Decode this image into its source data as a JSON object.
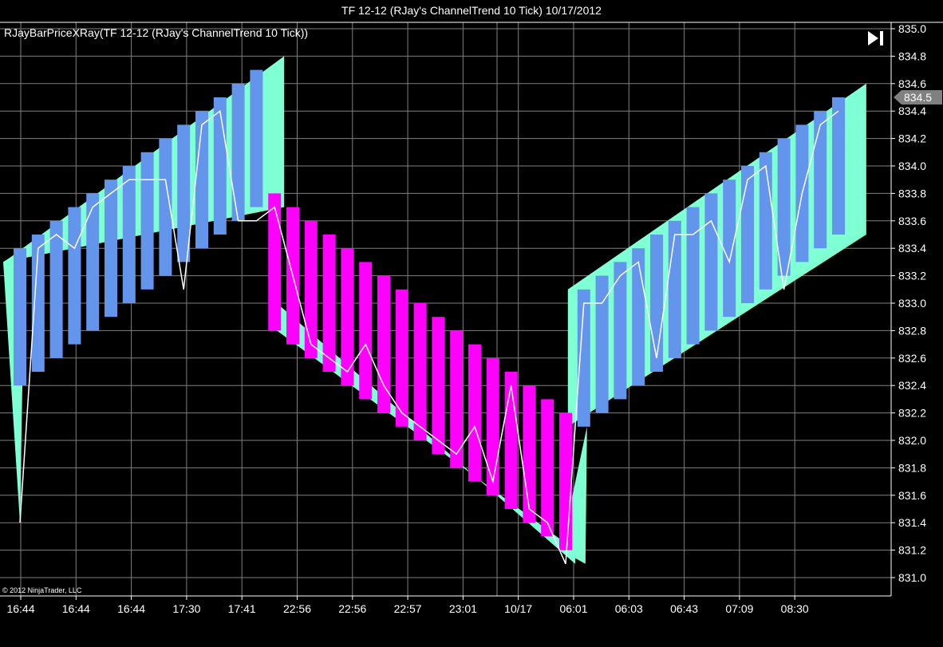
{
  "window": {
    "title": "TF 12-12 (RJay's ChannelTrend  10 Tick)  10/17/2012"
  },
  "indicator": {
    "label": "RJayBarPriceXRay(TF 12-12 (RJay's ChannelTrend  10 Tick))"
  },
  "copyright": "© 2012 NinjaTrader, LLC",
  "nav": {
    "icon": "skip-to-end-icon"
  },
  "colors": {
    "background": "#000000",
    "grid": "#7f7f7f",
    "up_bar": "#6495ED",
    "down_bar": "#FF00FF",
    "channel_fill": "#7FFFD4",
    "price_line": "#FFFFFF",
    "price_marker": "#808080"
  },
  "chart_data": {
    "type": "bar",
    "y_axis": {
      "ticks": [
        "835.0",
        "834.8",
        "834.6",
        "834.4",
        "834.2",
        "834.0",
        "833.8",
        "833.6",
        "833.4",
        "833.2",
        "833.0",
        "832.8",
        "832.6",
        "832.4",
        "832.2",
        "832.0",
        "831.8",
        "831.6",
        "831.4",
        "831.2",
        "831.0"
      ],
      "ylim": [
        831.0,
        835.0
      ],
      "current_price_label": "834.5",
      "current_price": 834.5
    },
    "x_axis": {
      "labels": [
        "16:44",
        "16:44",
        "16:44",
        "17:30",
        "17:41",
        "22:56",
        "22:56",
        "22:57",
        "23:01",
        "10/17",
        "06:01",
        "06:03",
        "06:43",
        "07:09",
        "08:30"
      ]
    },
    "grid": true,
    "bars": [
      {
        "open": 833.4,
        "close": 832.4,
        "dir": "up"
      },
      {
        "open": 833.5,
        "close": 832.5,
        "dir": "up"
      },
      {
        "open": 833.6,
        "close": 832.6,
        "dir": "up"
      },
      {
        "open": 833.7,
        "close": 832.7,
        "dir": "up"
      },
      {
        "open": 833.8,
        "close": 832.8,
        "dir": "up"
      },
      {
        "open": 833.9,
        "close": 832.9,
        "dir": "up"
      },
      {
        "open": 834.0,
        "close": 833.0,
        "dir": "up"
      },
      {
        "open": 834.1,
        "close": 833.1,
        "dir": "up"
      },
      {
        "open": 834.2,
        "close": 833.2,
        "dir": "up"
      },
      {
        "open": 834.3,
        "close": 833.3,
        "dir": "up"
      },
      {
        "open": 834.4,
        "close": 833.4,
        "dir": "up"
      },
      {
        "open": 834.5,
        "close": 833.5,
        "dir": "up"
      },
      {
        "open": 834.6,
        "close": 833.6,
        "dir": "up"
      },
      {
        "open": 834.7,
        "close": 833.7,
        "dir": "up"
      },
      {
        "open": 833.8,
        "close": 832.8,
        "dir": "down"
      },
      {
        "open": 833.7,
        "close": 832.7,
        "dir": "down"
      },
      {
        "open": 833.6,
        "close": 832.6,
        "dir": "down"
      },
      {
        "open": 833.5,
        "close": 832.5,
        "dir": "down"
      },
      {
        "open": 833.4,
        "close": 832.4,
        "dir": "down"
      },
      {
        "open": 833.3,
        "close": 832.3,
        "dir": "down"
      },
      {
        "open": 833.2,
        "close": 832.2,
        "dir": "down"
      },
      {
        "open": 833.1,
        "close": 832.1,
        "dir": "down"
      },
      {
        "open": 833.0,
        "close": 832.0,
        "dir": "down"
      },
      {
        "open": 832.9,
        "close": 831.9,
        "dir": "down"
      },
      {
        "open": 832.8,
        "close": 831.8,
        "dir": "down"
      },
      {
        "open": 832.7,
        "close": 831.7,
        "dir": "down"
      },
      {
        "open": 832.6,
        "close": 831.6,
        "dir": "down"
      },
      {
        "open": 832.5,
        "close": 831.5,
        "dir": "down"
      },
      {
        "open": 832.4,
        "close": 831.4,
        "dir": "down"
      },
      {
        "open": 832.3,
        "close": 831.3,
        "dir": "down"
      },
      {
        "open": 832.2,
        "close": 831.2,
        "dir": "down"
      },
      {
        "open": 833.1,
        "close": 832.1,
        "dir": "up"
      },
      {
        "open": 833.2,
        "close": 832.2,
        "dir": "up"
      },
      {
        "open": 833.3,
        "close": 832.3,
        "dir": "up"
      },
      {
        "open": 833.4,
        "close": 832.4,
        "dir": "up"
      },
      {
        "open": 833.5,
        "close": 832.5,
        "dir": "up"
      },
      {
        "open": 833.6,
        "close": 832.6,
        "dir": "up"
      },
      {
        "open": 833.7,
        "close": 832.7,
        "dir": "up"
      },
      {
        "open": 833.8,
        "close": 832.8,
        "dir": "up"
      },
      {
        "open": 833.9,
        "close": 832.9,
        "dir": "up"
      },
      {
        "open": 834.0,
        "close": 833.0,
        "dir": "up"
      },
      {
        "open": 834.1,
        "close": 833.1,
        "dir": "up"
      },
      {
        "open": 834.2,
        "close": 833.2,
        "dir": "up"
      },
      {
        "open": 834.3,
        "close": 833.3,
        "dir": "up"
      },
      {
        "open": 834.4,
        "close": 833.4,
        "dir": "up"
      },
      {
        "open": 834.5,
        "close": 833.5,
        "dir": "up"
      }
    ],
    "price_line": [
      833.4,
      833.4,
      833.5,
      833.4,
      833.7,
      833.8,
      833.9,
      833.9,
      833.9,
      833.3,
      834.3,
      834.4,
      833.6,
      833.6,
      833.7,
      833.2,
      832.7,
      832.6,
      832.5,
      832.7,
      832.4,
      832.2,
      832.1,
      832.0,
      831.9,
      832.1,
      831.7,
      832.4,
      831.5,
      831.4,
      831.3,
      833.0,
      833.0,
      833.2,
      833.3,
      832.6,
      833.5,
      833.5,
      833.6,
      833.3,
      833.9,
      834.0,
      833.2,
      833.8,
      834.3,
      834.4
    ],
    "price_line_extremes": {
      "0": 831.4,
      "9": 833.1,
      "30": 831.1,
      "42": 833.1
    },
    "channel": {
      "upper": [
        [
          0,
          833.3
        ],
        [
          14,
          834.8
        ],
        [
          15,
          833.0
        ],
        [
          30,
          831.1
        ],
        [
          31,
          833.1
        ],
        [
          46,
          834.6
        ]
      ],
      "lower": [
        [
          0,
          833.3
        ],
        [
          14,
          833.7
        ],
        [
          15,
          832.8
        ],
        [
          30,
          831.2
        ],
        [
          31,
          832.1
        ],
        [
          46,
          833.5
        ]
      ]
    }
  }
}
